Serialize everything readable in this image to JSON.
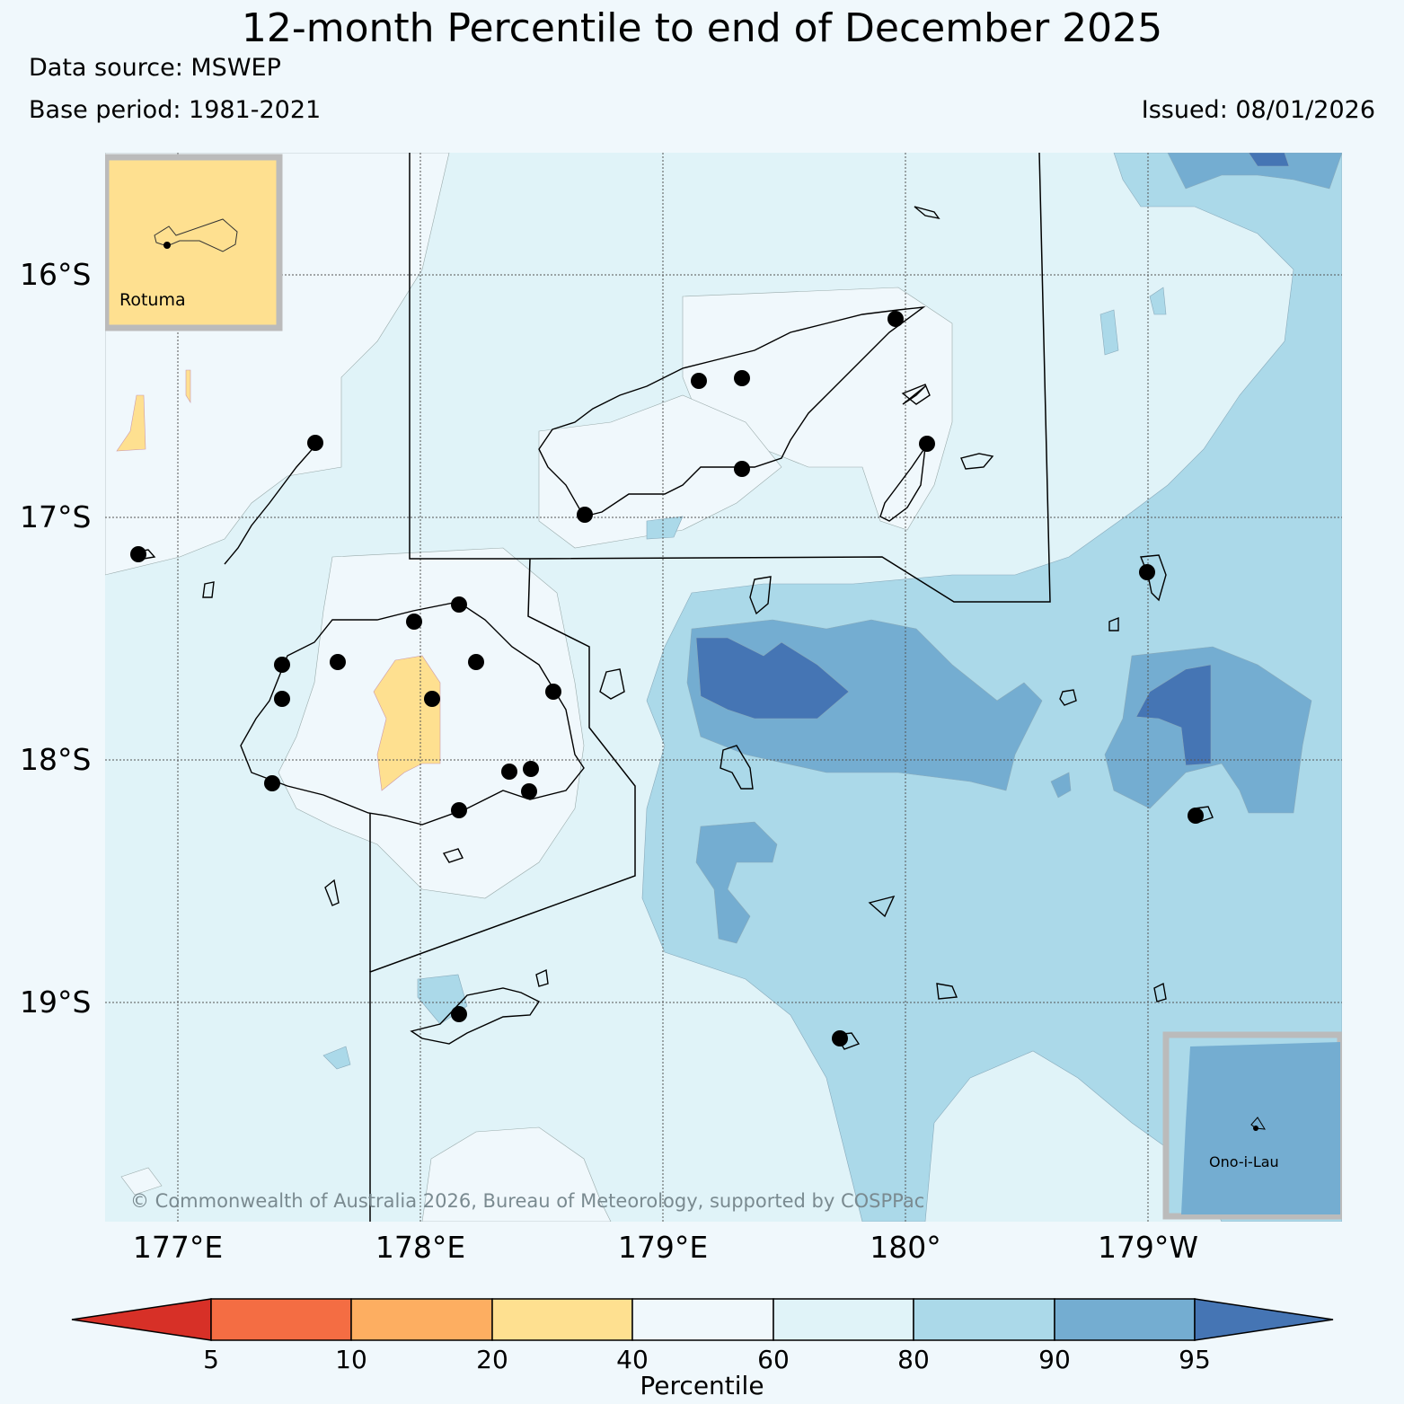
{
  "header": {
    "title": "12-month Percentile to end of December 2025",
    "data_source": "Data source: MSWEP",
    "base_period": "Base period: 1981-2021",
    "issued": "Issued: 08/01/2026"
  },
  "map": {
    "lat_labels": [
      "16°S",
      "17°S",
      "18°S",
      "19°S"
    ],
    "lon_labels": [
      "177°E",
      "178°E",
      "179°E",
      "180°",
      "179°W"
    ],
    "copyright": "© Commonwealth of Australia 2026, Bureau of Meteorology, supported by COSPPac",
    "insets": [
      {
        "label": "Rotuma",
        "percentile_class": "20-40"
      },
      {
        "label": "Ono-i-Lau",
        "percentile_class": "90-95"
      }
    ]
  },
  "legend": {
    "label": "Percentile",
    "ticks": [
      "5",
      "10",
      "20",
      "40",
      "60",
      "80",
      "90",
      "95"
    ],
    "colors": [
      "#d73027",
      "#f46d43",
      "#fdae61",
      "#fee090",
      "#f0f8fc",
      "#e0f3f8",
      "#abd9e9",
      "#74add1",
      "#4575b4"
    ]
  }
}
